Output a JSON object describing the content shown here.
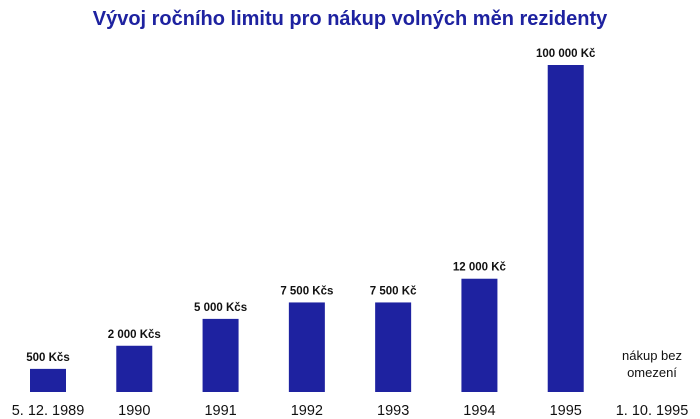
{
  "chart_data": {
    "type": "bar",
    "title": "Vývoj ročního limitu pro nákup volných měn rezidenty",
    "categories": [
      "5. 12. 1989",
      "1990",
      "1991",
      "1992",
      "1993",
      "1994",
      "1995",
      "1. 10. 1995"
    ],
    "values": [
      500,
      2000,
      5000,
      7500,
      7500,
      12000,
      100000,
      null
    ],
    "data_labels": [
      "500 Kčs",
      "2 000 Kčs",
      "5 000 Kčs",
      "7 500 Kčs",
      "7 500 Kč",
      "12 000 Kč",
      "100 000 Kč",
      ""
    ],
    "annotation": [
      "nákup bez",
      "omezení"
    ],
    "scale": "non-linear (bars not proportional to values)",
    "xlabel": "",
    "ylabel": "",
    "grid": false,
    "legend": "none",
    "bar_color": "#1e22a0",
    "title_color": "#1e22a0"
  }
}
